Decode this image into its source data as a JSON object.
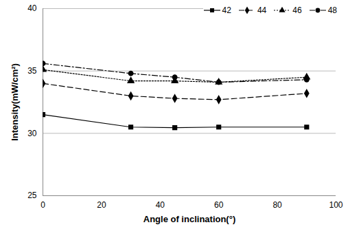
{
  "chart_data": {
    "type": "line",
    "x_label": "Angle of inclination(°)",
    "y_label": "Intensity(mW/cm²)",
    "x": [
      0,
      30,
      45,
      60,
      90
    ],
    "series": [
      {
        "name": "42",
        "color": "#000000",
        "marker": "square",
        "line_style": "solid",
        "values": [
          31.5,
          30.5,
          30.45,
          30.5,
          30.5
        ]
      },
      {
        "name": "44",
        "color": "#000000",
        "marker": "diamond",
        "line_style": "dashed",
        "values": [
          34.0,
          33.0,
          32.8,
          32.7,
          33.2
        ]
      },
      {
        "name": "46",
        "color": "#000000",
        "marker": "triangle",
        "line_style": "dotted",
        "values": [
          35.1,
          34.2,
          34.2,
          34.1,
          34.5
        ]
      },
      {
        "name": "48",
        "color": "#000000",
        "marker": "circle",
        "line_style": "dashdot",
        "values": [
          35.6,
          34.8,
          34.5,
          34.1,
          34.3
        ]
      }
    ],
    "xlim": [
      0,
      100
    ],
    "xticks": [
      0,
      20,
      40,
      60,
      80,
      100
    ],
    "ylim": [
      25,
      40
    ],
    "yticks": [
      25,
      30,
      35,
      40
    ],
    "grid": true,
    "legend": "top-right"
  }
}
